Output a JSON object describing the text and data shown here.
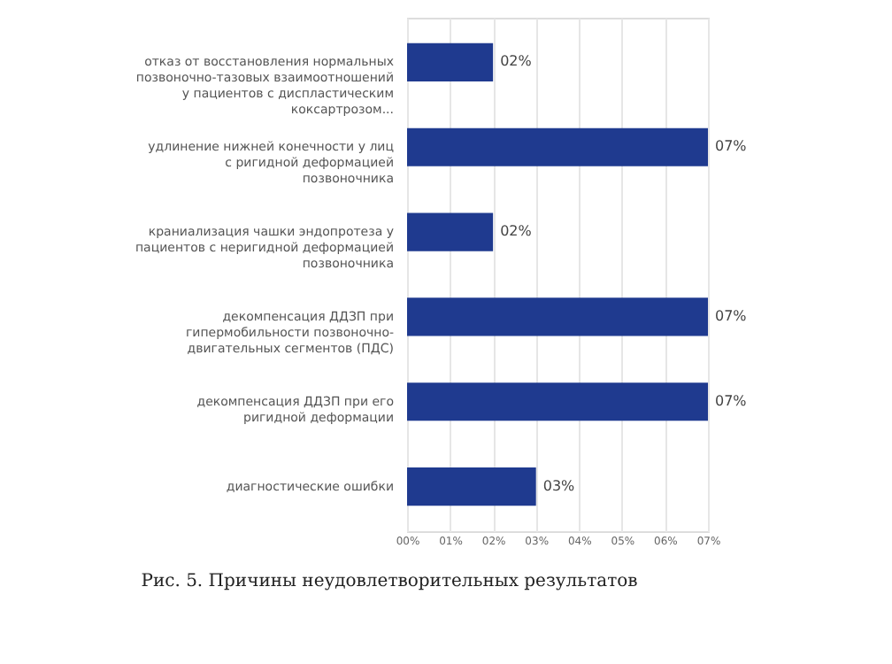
{
  "chart_data": {
    "type": "bar",
    "orientation": "horizontal",
    "categories": [
      "отказ от восстановления нормальных позвоночно-тазовых взаимоотношений у пациентов с диспластическим коксартрозом...",
      "удлинение нижней конечности у лиц с ригидной деформацией позвоночника",
      "краниализация чашки эндопротеза у пациентов с неригидной деформацией позвоночника",
      "декомпенсация ДДЗП при гипермобильности позвоночно-двигательных сегментов (ПДС)",
      "декомпенсация ДДЗП при его ригидной деформации",
      "диагностические ошибки"
    ],
    "values": [
      2,
      7,
      2,
      7,
      7,
      3
    ],
    "value_labels": [
      "02%",
      "07%",
      "02%",
      "07%",
      "07%",
      "03%"
    ],
    "color": "#1f3a8f",
    "xlim": [
      0,
      7
    ],
    "xticks": [
      {
        "value": 0,
        "label": "00%"
      },
      {
        "value": 1,
        "label": "01%"
      },
      {
        "value": 2,
        "label": "02%"
      },
      {
        "value": 3,
        "label": "03%"
      },
      {
        "value": 4,
        "label": "04%"
      },
      {
        "value": 5,
        "label": "05%"
      },
      {
        "value": 6,
        "label": "06%"
      },
      {
        "value": 7,
        "label": "07%"
      }
    ],
    "grid": "x",
    "legend": false,
    "annotations": [
      "Рис. 5. Причины неудовлетворительных результатов"
    ]
  }
}
